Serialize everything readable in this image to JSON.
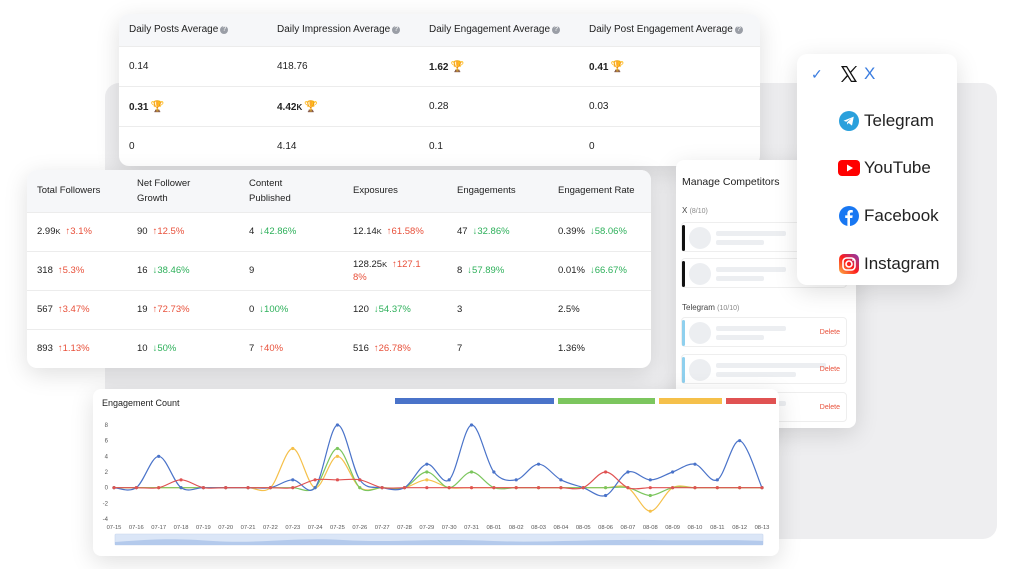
{
  "averages": {
    "headers": [
      "Daily Posts Average",
      "Daily Impression Average",
      "Daily Engagement Average",
      "Daily Post Engagement Average"
    ],
    "rows": [
      [
        "0.14",
        "418.76",
        "1.62",
        "0.41"
      ],
      [
        "0.31",
        "4.42",
        "0.28",
        "0.03"
      ],
      [
        "0",
        "4.14",
        "0.1",
        "0"
      ]
    ],
    "unit_k": "K"
  },
  "followers": {
    "headers": [
      "Total Followers",
      "Net Follower Growth",
      "Content Published",
      "Exposures",
      "Engagements",
      "Engagement Rate"
    ],
    "rows": [
      [
        {
          "v": "2.99",
          "u": "K",
          "c": "3.1%",
          "d": "up"
        },
        {
          "v": "90",
          "c": "12.5%",
          "d": "up"
        },
        {
          "v": "4",
          "c": "42.86%",
          "d": "down"
        },
        {
          "v": "12.14",
          "u": "K",
          "c": "61.58%",
          "d": "up"
        },
        {
          "v": "47",
          "c": "32.86%",
          "d": "down"
        },
        {
          "v": "0.39%",
          "c": "58.06%",
          "d": "down"
        }
      ],
      [
        {
          "v": "318",
          "c": "5.3%",
          "d": "up"
        },
        {
          "v": "16",
          "c": "38.46%",
          "d": "down"
        },
        {
          "v": "9"
        },
        {
          "v": "128.25",
          "u": "K",
          "c": "127.18%",
          "d": "up"
        },
        {
          "v": "8",
          "c": "57.89%",
          "d": "down"
        },
        {
          "v": "0.01%",
          "c": "66.67%",
          "d": "down"
        }
      ],
      [
        {
          "v": "567",
          "c": "3.47%",
          "d": "up"
        },
        {
          "v": "19",
          "c": "72.73%",
          "d": "up"
        },
        {
          "v": "0",
          "c": "100%",
          "d": "down"
        },
        {
          "v": "120",
          "c": "54.37%",
          "d": "down"
        },
        {
          "v": "3"
        },
        {
          "v": "2.5%"
        }
      ],
      [
        {
          "v": "893",
          "c": "1.13%",
          "d": "up"
        },
        {
          "v": "10",
          "c": "50%",
          "d": "down"
        },
        {
          "v": "7",
          "c": "40%",
          "d": "up"
        },
        {
          "v": "516",
          "c": "26.78%",
          "d": "up"
        },
        {
          "v": "7"
        },
        {
          "v": "1.36%"
        }
      ]
    ]
  },
  "competitors": {
    "title": "Manage Competitors",
    "x_label": "X",
    "x_count": "(8/10)",
    "telegram_label": "Telegram",
    "telegram_count": "(10/10)",
    "delete_label": "Delete"
  },
  "platforms": {
    "items": [
      {
        "label": "X",
        "icon": "x-logo-icon",
        "selected": true
      },
      {
        "label": "Telegram",
        "icon": "telegram-icon",
        "selected": false
      },
      {
        "label": "YouTube",
        "icon": "youtube-icon",
        "selected": false
      },
      {
        "label": "Facebook",
        "icon": "facebook-icon",
        "selected": false
      },
      {
        "label": "Instagram",
        "icon": "instagram-icon",
        "selected": false
      }
    ]
  },
  "chart_data": {
    "type": "line",
    "title": "Engagement Count",
    "x": [
      "07-15",
      "07-16",
      "07-17",
      "07-18",
      "07-19",
      "07-20",
      "07-21",
      "07-22",
      "07-23",
      "07-24",
      "07-25",
      "07-26",
      "07-27",
      "07-28",
      "07-29",
      "07-30",
      "07-31",
      "08-01",
      "08-02",
      "08-03",
      "08-04",
      "08-05",
      "08-06",
      "08-07",
      "08-08",
      "08-09",
      "08-10",
      "08-11",
      "08-12",
      "08-13"
    ],
    "yticks": [
      -4,
      -2,
      0,
      2,
      4,
      6,
      8
    ],
    "ylim": [
      -4,
      8
    ],
    "series": [
      {
        "color": "#4a73c9",
        "values": [
          0,
          0,
          4,
          0,
          0,
          0,
          0,
          0,
          1,
          0,
          8,
          1,
          0,
          0,
          3,
          1,
          8,
          2,
          1,
          3,
          1,
          0,
          -1,
          2,
          1,
          2,
          3,
          1,
          6,
          0
        ]
      },
      {
        "color": "#7cc65e",
        "values": [
          0,
          0,
          0,
          0,
          0,
          0,
          0,
          0,
          0,
          0,
          5,
          0,
          0,
          0,
          2,
          0,
          2,
          0,
          0,
          0,
          0,
          0,
          0,
          0,
          -1,
          0,
          0,
          0,
          0,
          0
        ]
      },
      {
        "color": "#f5c04a",
        "values": [
          0,
          0,
          0,
          0,
          0,
          0,
          0,
          0,
          5,
          0,
          4,
          0,
          0,
          0,
          1,
          0,
          0,
          0,
          0,
          0,
          0,
          0,
          0,
          0,
          -3,
          0,
          0,
          0,
          0,
          0
        ]
      },
      {
        "color": "#e05252",
        "values": [
          0,
          0,
          0,
          1,
          0,
          0,
          0,
          0,
          0,
          1,
          1,
          1,
          0,
          0,
          0,
          0,
          0,
          0,
          0,
          0,
          0,
          0,
          2,
          0,
          0,
          0,
          0,
          0,
          0,
          0
        ]
      }
    ],
    "legend_position": "top-right",
    "grid": false
  }
}
